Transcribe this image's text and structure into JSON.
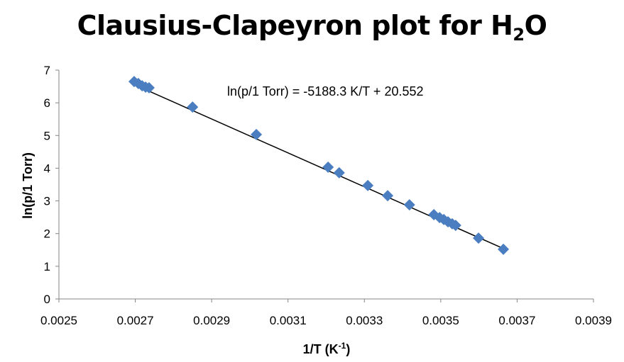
{
  "chart_data": {
    "type": "scatter",
    "title": {
      "main": "Clausius-Clapeyron plot  for H",
      "sub": "2",
      "tail": "O"
    },
    "xlabel": {
      "main": "1/T (K",
      "sup": "-1",
      "tail": ")"
    },
    "ylabel": "ln(p/1 Torr)",
    "xlim": [
      0.0025,
      0.0039
    ],
    "ylim": [
      0,
      7
    ],
    "xticks": [
      "0.0025",
      "0.0027",
      "0.0029",
      "0.0031",
      "0.0033",
      "0.0035",
      "0.0037",
      "0.0039"
    ],
    "yticks": [
      "0",
      "1",
      "2",
      "3",
      "4",
      "5",
      "6",
      "7"
    ],
    "grid": false,
    "marker_color": "#4A7EC0",
    "trendline": {
      "slope": -5188.3,
      "intercept": 20.552,
      "color": "#000000",
      "equation": "ln(p/1 Torr) = -5188.3 K/T + 20.552"
    },
    "points": [
      [
        0.002697,
        6.65
      ],
      [
        0.002708,
        6.59
      ],
      [
        0.002718,
        6.52
      ],
      [
        0.002727,
        6.48
      ],
      [
        0.002736,
        6.46
      ],
      [
        0.00285,
        5.87
      ],
      [
        0.003017,
        5.03
      ],
      [
        0.003205,
        4.03
      ],
      [
        0.003234,
        3.86
      ],
      [
        0.003309,
        3.47
      ],
      [
        0.003361,
        3.16
      ],
      [
        0.003418,
        2.88
      ],
      [
        0.003482,
        2.58
      ],
      [
        0.003497,
        2.49
      ],
      [
        0.003508,
        2.43
      ],
      [
        0.003519,
        2.36
      ],
      [
        0.00353,
        2.3
      ],
      [
        0.003539,
        2.25
      ],
      [
        0.003599,
        1.86
      ],
      [
        0.003664,
        1.52
      ]
    ]
  }
}
